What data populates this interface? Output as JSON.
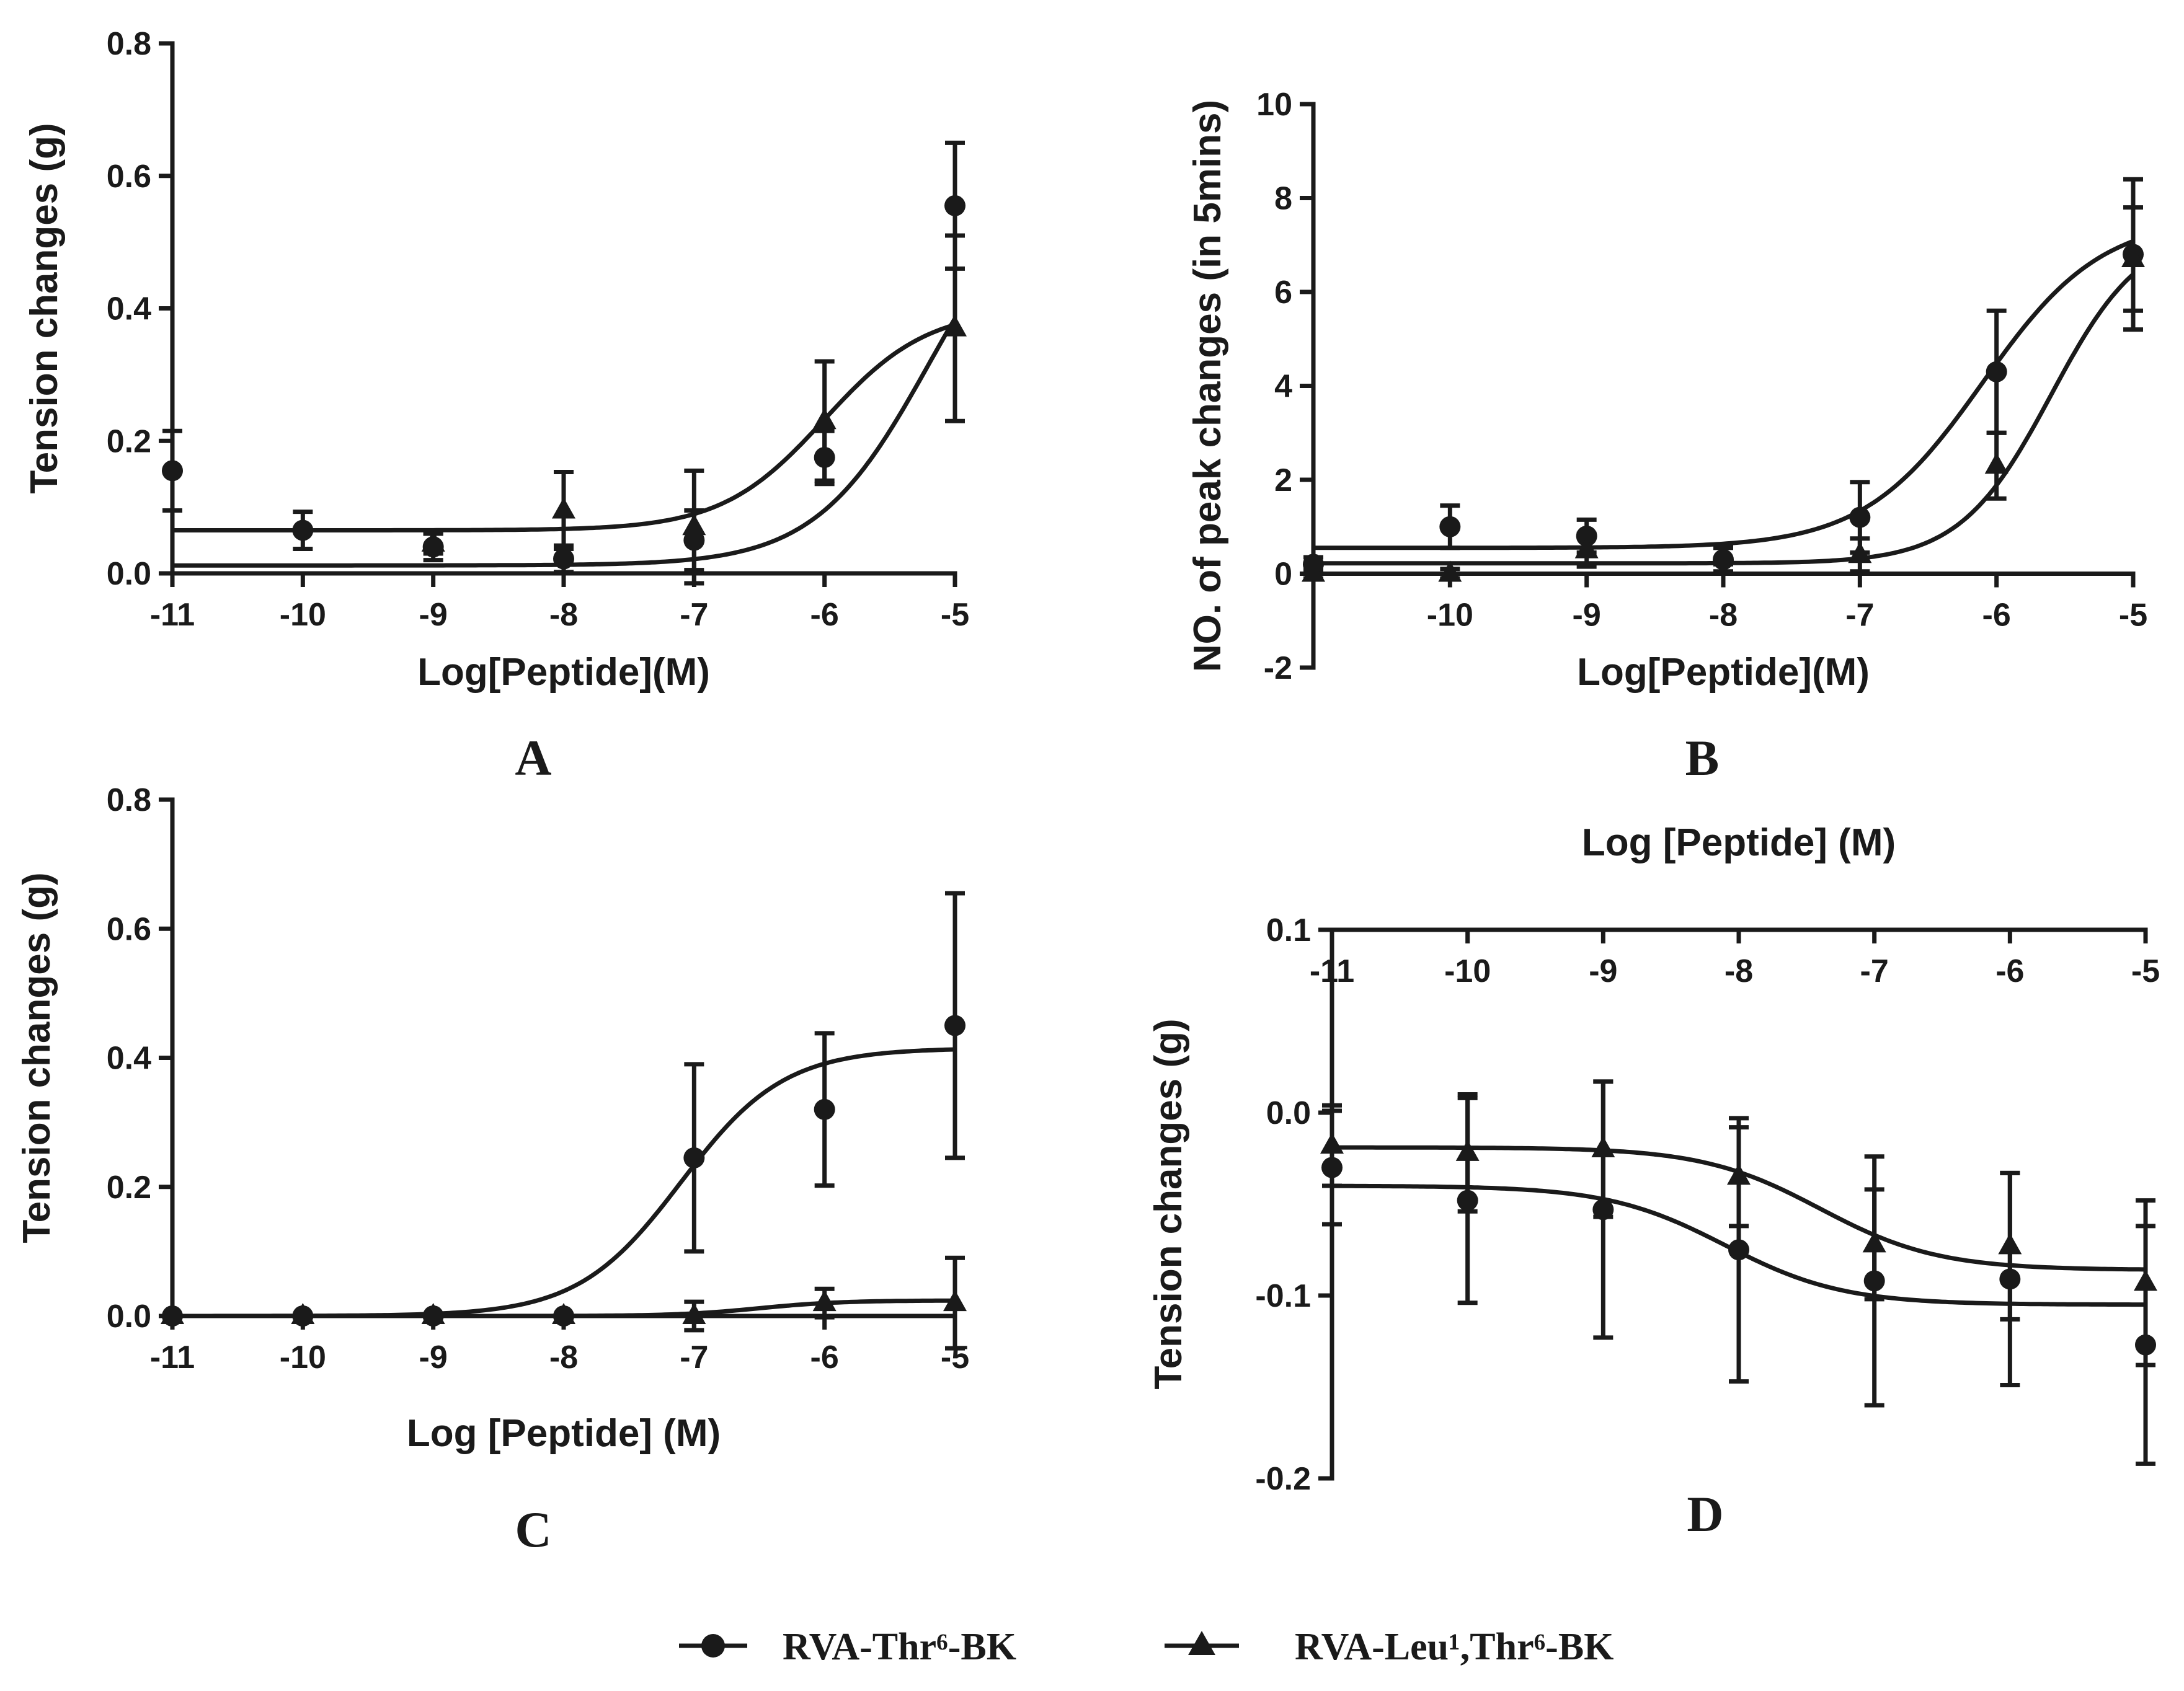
{
  "figure": {
    "legend": [
      {
        "name": "RVA-Thr⁶-BK",
        "marker": "circle"
      },
      {
        "name": "RVA-Leu¹,Thr⁶-BK",
        "marker": "triangle"
      }
    ]
  },
  "chart_data": [
    {
      "id": "A",
      "type": "scatter",
      "panel_label": "A",
      "title": "",
      "xlabel": "Log[Peptide](M)",
      "ylabel": "Tension changes (g)",
      "xlim": [
        -11,
        -5
      ],
      "ylim": [
        0,
        0.8
      ],
      "x_axis_position": "bottom",
      "xticks": [
        -11,
        -10,
        -9,
        -8,
        -7,
        -6,
        -5
      ],
      "yticks": [
        0.0,
        0.2,
        0.4,
        0.6,
        0.8
      ],
      "ytick_labels": [
        "0.0",
        "0.2",
        "0.4",
        "0.6",
        "0.8"
      ],
      "series": [
        {
          "name": "RVA-Thr⁶-BK",
          "marker": "circle",
          "x": [
            -11,
            -10,
            -9,
            -8,
            -7,
            -6,
            -5
          ],
          "y": [
            0.155,
            0.065,
            0.04,
            0.022,
            0.05,
            0.175,
            0.555
          ],
          "err": [
            0.06,
            0.028,
            0.02,
            0.02,
            0.045,
            0.04,
            0.095
          ],
          "fit": {
            "bottom": 0.012,
            "top": 0.62,
            "logEC50": -5.2,
            "hill": 1.0
          }
        },
        {
          "name": "RVA-Leu¹,Thr⁶-BK",
          "marker": "triangle",
          "x": [
            -9,
            -8,
            -7,
            -6,
            -5
          ],
          "y": [
            0.045,
            0.095,
            0.07,
            0.23,
            0.37
          ],
          "err": [
            0.015,
            0.058,
            0.085,
            0.09,
            0.14
          ],
          "fit": {
            "bottom": 0.065,
            "top": 0.4,
            "logEC50": -6.0,
            "hill": 1.1
          }
        }
      ]
    },
    {
      "id": "B",
      "type": "scatter",
      "panel_label": "B",
      "title": "",
      "xlabel": "Log[Peptide](M)",
      "ylabel": "NO. of peak changes (in 5mins)",
      "xlim": [
        -11,
        -5
      ],
      "ylim": [
        -2,
        10
      ],
      "x_axis_position": "zero",
      "xticks": [
        -10,
        -9,
        -8,
        -7,
        -6,
        -5
      ],
      "yticks": [
        -2,
        0,
        2,
        4,
        6,
        8,
        10
      ],
      "ytick_labels": [
        "-2",
        "0",
        "2",
        "4",
        "6",
        "8",
        "10"
      ],
      "series": [
        {
          "name": "RVA-Thr⁶-BK",
          "marker": "circle",
          "x": [
            -11,
            -10,
            -9,
            -8,
            -7,
            -6,
            -5
          ],
          "y": [
            0.2,
            1.0,
            0.8,
            0.3,
            1.2,
            4.3,
            6.8
          ],
          "err": [
            0.15,
            0.45,
            0.35,
            0.25,
            0.75,
            1.3,
            1.6
          ],
          "fit": {
            "bottom": 0.55,
            "top": 7.6,
            "logEC50": -6.1,
            "hill": 1.0
          }
        },
        {
          "name": "RVA-Leu¹,Thr⁶-BK",
          "marker": "triangle",
          "x": [
            -11,
            -10,
            -9,
            -8,
            -7,
            -6,
            -5
          ],
          "y": [
            0.0,
            0.0,
            0.5,
            0.4,
            0.4,
            2.3,
            6.7
          ],
          "err": [
            0.1,
            0.1,
            0.35,
            0.2,
            0.35,
            0.7,
            1.1
          ],
          "fit": {
            "bottom": 0.22,
            "top": 7.4,
            "logEC50": -5.6,
            "hill": 1.3
          }
        }
      ]
    },
    {
      "id": "C",
      "type": "scatter",
      "panel_label": "C",
      "title": "",
      "xlabel": "Log [Peptide] (M)",
      "ylabel": "Tension changes (g)",
      "xlim": [
        -11,
        -5
      ],
      "ylim": [
        0,
        0.8
      ],
      "x_axis_position": "bottom",
      "xticks": [
        -11,
        -10,
        -9,
        -8,
        -7,
        -6,
        -5
      ],
      "yticks": [
        0.0,
        0.2,
        0.4,
        0.6,
        0.8
      ],
      "ytick_labels": [
        "0.0",
        "0.2",
        "0.4",
        "0.6",
        "0.8"
      ],
      "series": [
        {
          "name": "RVA-Thr⁶-BK",
          "marker": "circle",
          "x": [
            -11,
            -10,
            -9,
            -8,
            -7,
            -6,
            -5
          ],
          "y": [
            0.0,
            0.0,
            0.0,
            0.0,
            0.245,
            0.32,
            0.45
          ],
          "err": [
            0,
            0,
            0,
            0,
            0.145,
            0.118,
            0.205
          ],
          "fit": {
            "bottom": 0.0,
            "top": 0.415,
            "logEC50": -7.1,
            "hill": 1.1
          }
        },
        {
          "name": "RVA-Leu¹,Thr⁶-BK",
          "marker": "triangle",
          "x": [
            -11,
            -10,
            -9,
            -8,
            -7,
            -6,
            -5
          ],
          "y": [
            0.0,
            0.0,
            0.0,
            0.0,
            0.0,
            0.02,
            0.02
          ],
          "err": [
            0,
            0,
            0,
            0,
            0.022,
            0.022,
            0.07
          ],
          "fit": {
            "bottom": 0.0,
            "top": 0.024,
            "logEC50": -6.5,
            "hill": 1.4
          }
        }
      ]
    },
    {
      "id": "D",
      "type": "scatter",
      "panel_label": "D",
      "title": "",
      "xlabel": "Log [Peptide] (M)",
      "ylabel": "Tension changes (g)",
      "xlim": [
        -11,
        -5
      ],
      "ylim": [
        -0.2,
        0.1
      ],
      "x_axis_position": "top",
      "xticks": [
        -11,
        -10,
        -9,
        -8,
        -7,
        -6,
        -5
      ],
      "yticks": [
        -0.2,
        -0.1,
        0.0,
        0.1
      ],
      "ytick_labels": [
        "-0.2",
        "-0.1",
        "0.0",
        "0.1"
      ],
      "series": [
        {
          "name": "RVA-Thr⁶-BK",
          "marker": "circle",
          "x": [
            -11,
            -10,
            -9,
            -8,
            -7,
            -6,
            -5
          ],
          "y": [
            -0.03,
            -0.048,
            -0.053,
            -0.075,
            -0.092,
            -0.091,
            -0.127
          ],
          "err": [
            0.031,
            0.056,
            0.07,
            0.072,
            0.068,
            0.058,
            0.065
          ],
          "fit": {
            "bottom": -0.04,
            "top": -0.105,
            "logEC50": -8.1,
            "hill": 1.0
          }
        },
        {
          "name": "RVA-Leu¹,Thr⁶-BK",
          "marker": "triangle",
          "x": [
            -11,
            -10,
            -9,
            -8,
            -7,
            -6,
            -5
          ],
          "y": [
            -0.018,
            -0.022,
            -0.02,
            -0.035,
            -0.072,
            -0.073,
            -0.093
          ],
          "err": [
            0.022,
            0.032,
            0.037,
            0.027,
            0.03,
            0.04,
            0.045
          ],
          "fit": {
            "bottom": -0.019,
            "top": -0.086,
            "logEC50": -7.4,
            "hill": 1.0
          }
        }
      ]
    }
  ]
}
